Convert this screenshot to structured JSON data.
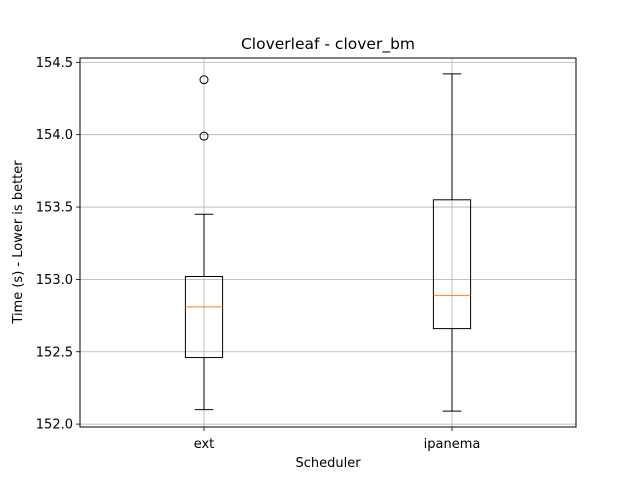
{
  "chart_data": {
    "type": "boxplot",
    "title": "Cloverleaf - clover_bm",
    "xlabel": "Scheduler",
    "ylabel": "Time (s) - Lower is better",
    "categories": [
      "ext",
      "ipanema"
    ],
    "ylim": [
      151.98,
      154.53
    ],
    "yticks": [
      "152.0",
      "152.5",
      "153.0",
      "153.5",
      "154.0",
      "154.5"
    ],
    "grid": true,
    "boxes": [
      {
        "name": "ext",
        "whisker_low": 152.1,
        "q1": 152.46,
        "median": 152.81,
        "q3": 153.02,
        "whisker_high": 153.45,
        "outliers": [
          153.99,
          154.38
        ]
      },
      {
        "name": "ipanema",
        "whisker_low": 152.09,
        "q1": 152.66,
        "median": 152.89,
        "q3": 153.55,
        "whisker_high": 154.42,
        "outliers": []
      }
    ],
    "colors": {
      "box": "#000000",
      "median": "#ff7f0e",
      "grid": "#b0b0b0"
    }
  }
}
